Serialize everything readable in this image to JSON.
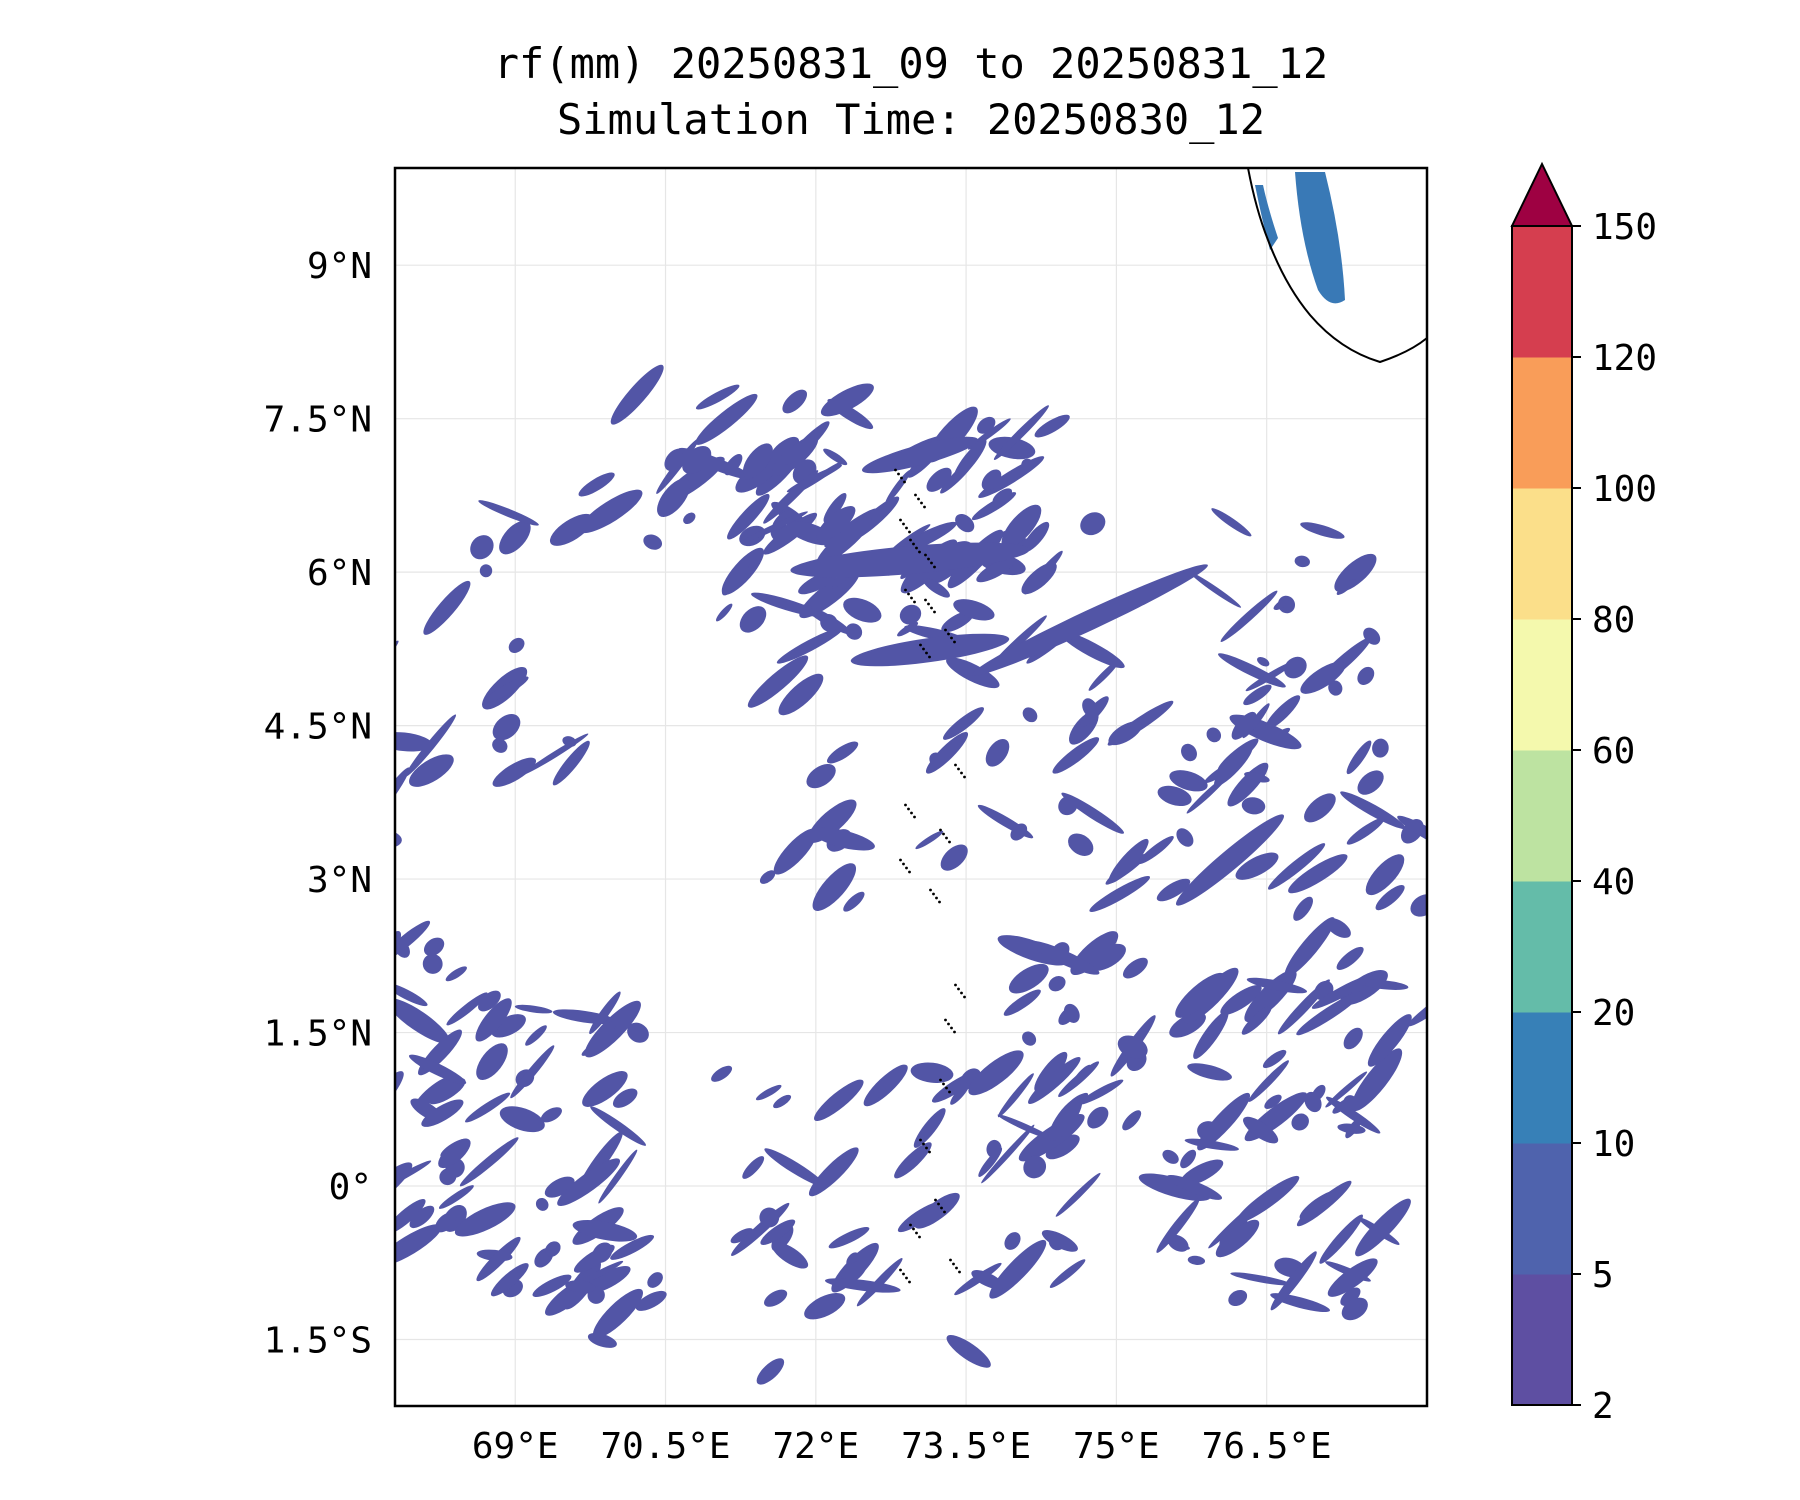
{
  "title_line1": "rf(mm) 20250831_09 to 20250831_12",
  "title_line2": "Simulation Time: 20250830_12",
  "map": {
    "lon_range": [
      67.8,
      78.1
    ],
    "lat_range": [
      -2.15,
      9.95
    ],
    "lon_ticks": [
      69,
      70.5,
      72,
      73.5,
      75,
      76.5
    ],
    "lon_tick_labels": [
      "69°E",
      "70.5°E",
      "72°E",
      "73.5°E",
      "75°E",
      "76.5°E"
    ],
    "lat_ticks": [
      9,
      7.5,
      6,
      4.5,
      3,
      1.5,
      0,
      -1.5
    ],
    "lat_tick_labels": [
      "9°N",
      "7.5°N",
      "6°N",
      "4.5°N",
      "3°N",
      "1.5°N",
      "0°",
      "1.5°S"
    ],
    "grid": true,
    "fill_color": "#5255a6",
    "heavy_color": "#3979b6",
    "coast_color": "#000000"
  },
  "colorbar": {
    "levels": [
      "2",
      "5",
      "10",
      "20",
      "40",
      "60",
      "80",
      "100",
      "120",
      "150"
    ],
    "colors": [
      "#5e4fa2",
      "#4f63ad",
      "#3780b7",
      "#64bca9",
      "#bde3a1",
      "#f4f9ad",
      "#fbdf8a",
      "#f99d59",
      "#d53e4f"
    ],
    "extend_color": "#9e0142",
    "extend": "max"
  }
}
